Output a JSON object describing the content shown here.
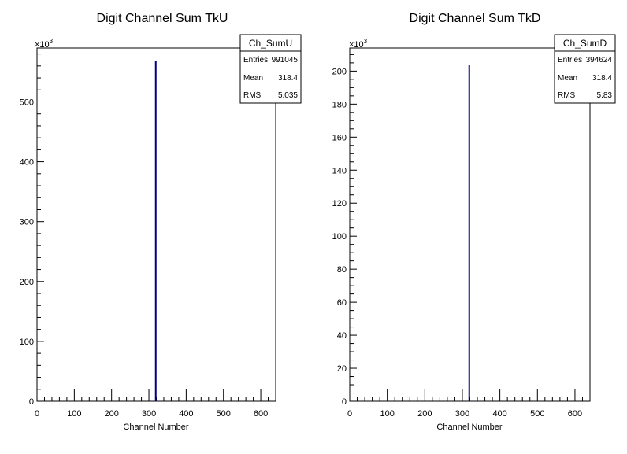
{
  "chart_data": [
    {
      "type": "bar",
      "title": "Digit Channel Sum TkU",
      "xlabel": "Channel Number",
      "ylabel": "",
      "xlim": [
        0,
        640
      ],
      "ylim": [
        0,
        590000
      ],
      "y_multiplier_label": "×10",
      "y_multiplier_exponent": "3",
      "x_ticks": [
        "0",
        "100",
        "200",
        "300",
        "400",
        "500",
        "600"
      ],
      "y_ticks": [
        "0",
        "100",
        "200",
        "300",
        "400",
        "500"
      ],
      "series": [
        {
          "x": [
            318.4
          ],
          "values": [
            568000
          ]
        }
      ],
      "bar_color": "#000080",
      "stats_box": {
        "name": "Ch_SumU",
        "rows": [
          {
            "label": "Entries",
            "value": "991045"
          },
          {
            "label": "Mean",
            "value": "318.4"
          },
          {
            "label": "RMS",
            "value": "5.035"
          }
        ]
      }
    },
    {
      "type": "bar",
      "title": "Digit Channel Sum TkD",
      "xlabel": "Channel Number",
      "ylabel": "",
      "xlim": [
        0,
        640
      ],
      "ylim": [
        0,
        214000
      ],
      "y_multiplier_label": "×10",
      "y_multiplier_exponent": "3",
      "x_ticks": [
        "0",
        "100",
        "200",
        "300",
        "400",
        "500",
        "600"
      ],
      "y_ticks": [
        "0",
        "20",
        "40",
        "60",
        "80",
        "100",
        "120",
        "140",
        "160",
        "180",
        "200"
      ],
      "series": [
        {
          "x": [
            318.4
          ],
          "values": [
            204000
          ]
        }
      ],
      "bar_color": "#000080",
      "stats_box": {
        "name": "Ch_SumD",
        "rows": [
          {
            "label": "Entries",
            "value": "394624"
          },
          {
            "label": "Mean",
            "value": "318.4"
          },
          {
            "label": "RMS",
            "value": "5.83"
          }
        ]
      }
    }
  ]
}
